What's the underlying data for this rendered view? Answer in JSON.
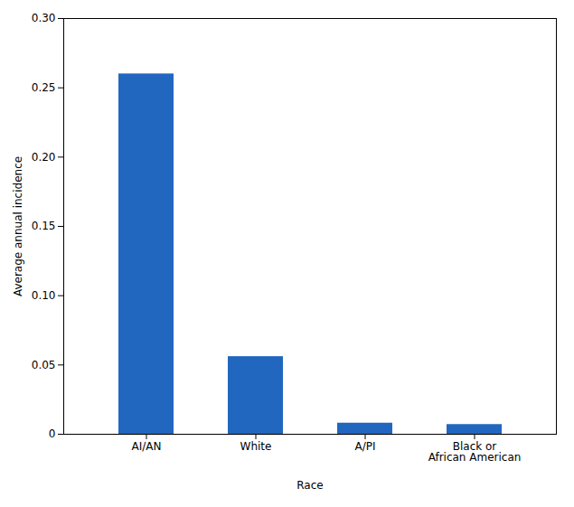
{
  "chart_data": {
    "type": "bar",
    "categories": [
      "AI/AN",
      "White",
      "A/PI",
      "Black or\nAfrican American"
    ],
    "values": [
      0.26,
      0.056,
      0.008,
      0.007
    ],
    "color": "#2167C0",
    "xlabel": "Race",
    "ylabel": "Average annual incidence",
    "ylim": [
      0,
      0.3
    ],
    "yticks": [
      0,
      0.05,
      {
        "value": 0.1,
        "label": "0.10"
      },
      0.15,
      {
        "value": 0.2,
        "label": "0.20"
      },
      0.25,
      {
        "value": 0.3,
        "label": "0.30"
      }
    ],
    "grid": false
  }
}
